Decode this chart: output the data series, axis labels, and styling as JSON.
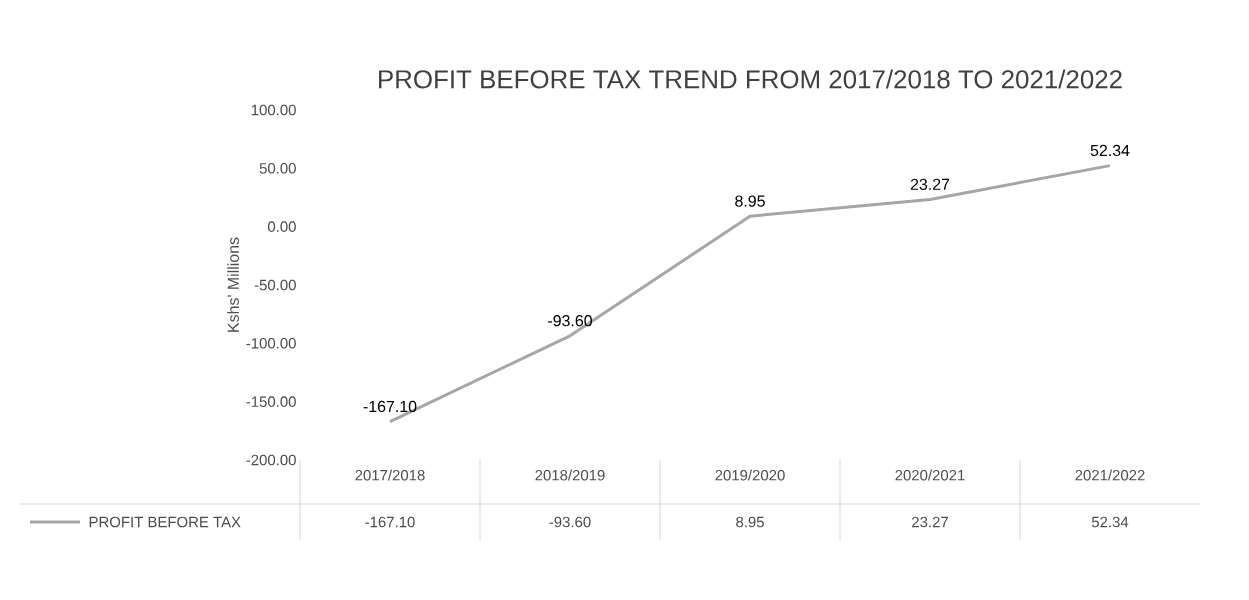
{
  "chart_data": {
    "type": "line",
    "title": "PROFIT BEFORE TAX TREND FROM 2017/2018 TO 2021/2022",
    "ylabel": "Kshs' Millions",
    "categories": [
      "2017/2018",
      "2018/2019",
      "2019/2020",
      "2020/2021",
      "2021/2022"
    ],
    "series": [
      {
        "name": "PROFIT BEFORE TAX",
        "color": "#a6a6a6",
        "values": [
          -167.1,
          -93.6,
          8.95,
          23.27,
          52.34
        ],
        "value_labels": [
          "-167.10",
          "-93.60",
          "8.95",
          "23.27",
          "52.34"
        ]
      }
    ],
    "ylim": [
      -200,
      100
    ],
    "yticks": [
      {
        "value": -200,
        "label": "-200.00"
      },
      {
        "value": -150,
        "label": "-150.00"
      },
      {
        "value": -100,
        "label": "-100.00"
      },
      {
        "value": -50,
        "label": "-50.00"
      },
      {
        "value": 0,
        "label": "0.00"
      },
      {
        "value": 50,
        "label": "50.00"
      },
      {
        "value": 100,
        "label": "100.00"
      }
    ],
    "grid": false,
    "legend": "bottom",
    "marker": "none",
    "line_style": "solid"
  }
}
